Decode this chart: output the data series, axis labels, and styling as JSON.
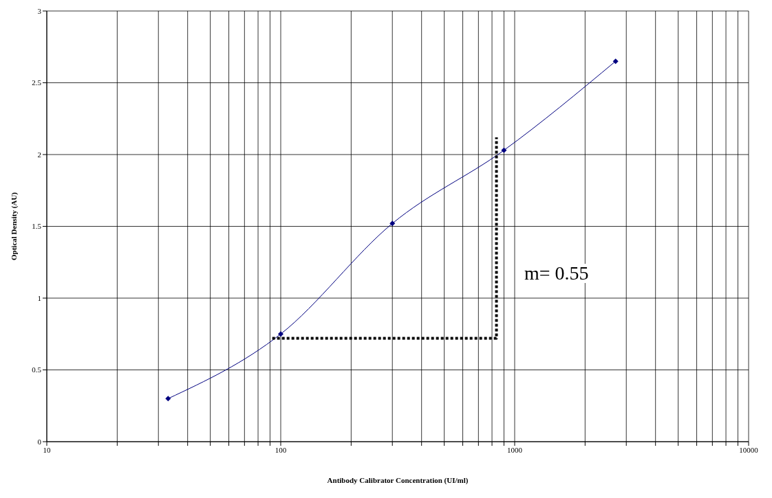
{
  "chart_data": {
    "type": "line",
    "xlabel": "Antibody Calibrator Concentration (UI/ml)",
    "ylabel": "Optical Density (AU)",
    "log": "x",
    "grid": true,
    "xlim": [
      10,
      10000
    ],
    "xticks": [
      10,
      {
        "value": 20,
        "label": null
      },
      {
        "value": 30,
        "label": null
      },
      {
        "value": 40,
        "label": null
      },
      {
        "value": 50,
        "label": null
      },
      {
        "value": 60,
        "label": null
      },
      {
        "value": 70,
        "label": null
      },
      {
        "value": 80,
        "label": null
      },
      {
        "value": 90,
        "label": null
      },
      100,
      {
        "value": 200,
        "label": null
      },
      {
        "value": 300,
        "label": null
      },
      {
        "value": 400,
        "label": null
      },
      {
        "value": 500,
        "label": null
      },
      {
        "value": 600,
        "label": null
      },
      {
        "value": 700,
        "label": null
      },
      {
        "value": 800,
        "label": null
      },
      {
        "value": 900,
        "label": null
      },
      1000,
      {
        "value": 2000,
        "label": null
      },
      {
        "value": 3000,
        "label": null
      },
      {
        "value": 4000,
        "label": null
      },
      {
        "value": 5000,
        "label": null
      },
      {
        "value": 6000,
        "label": null
      },
      {
        "value": 7000,
        "label": null
      },
      {
        "value": 8000,
        "label": null
      },
      {
        "value": 9000,
        "label": null
      },
      10000
    ],
    "ylim": [
      0,
      3
    ],
    "yticks": [
      0,
      0.5,
      1,
      1.5,
      2,
      2.5,
      3
    ],
    "series": [
      {
        "color": "#000080",
        "marker": "diamond",
        "line_style": "solid",
        "x": [
          33,
          100,
          300,
          900,
          2700
        ],
        "values": [
          0.3,
          0.75,
          1.52,
          2.03,
          2.65
        ]
      },
      {
        "color": "#000000",
        "marker": "none",
        "line_style": "dotted",
        "x": [
          92,
          836,
          836
        ],
        "values": [
          0.72,
          0.72,
          2.12
        ]
      }
    ],
    "annotations": [
      "m= 0.55"
    ]
  }
}
